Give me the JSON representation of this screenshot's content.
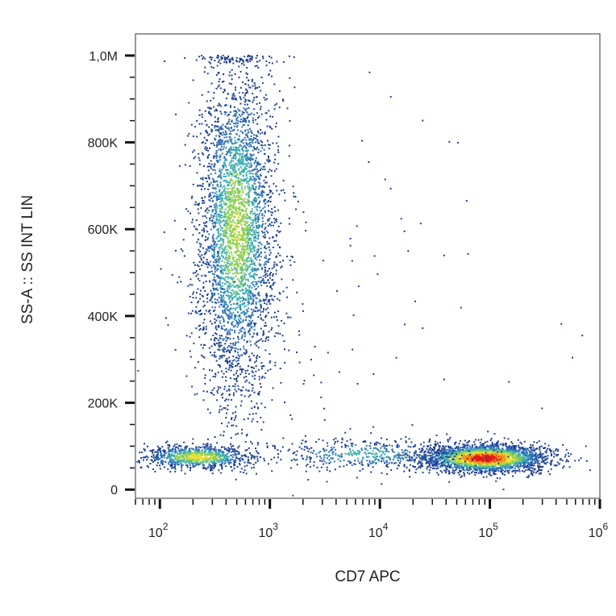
{
  "chart_data": {
    "type": "scatter",
    "subtype": "flow-cytometry density dot plot",
    "xlabel": "CD7 APC",
    "ylabel": "SS-A :: SS INT LIN",
    "x_scale": "log",
    "xlim": [
      60,
      1000000
    ],
    "ylim": [
      -20000,
      1050000
    ],
    "x_ticks": [
      {
        "value": 100,
        "base": "10",
        "exp": "2"
      },
      {
        "value": 1000,
        "base": "10",
        "exp": "3"
      },
      {
        "value": 10000,
        "base": "10",
        "exp": "4"
      },
      {
        "value": 100000,
        "base": "10",
        "exp": "5"
      },
      {
        "value": 1000000,
        "base": "10",
        "exp": "6"
      }
    ],
    "y_ticks": [
      {
        "value": 0,
        "label": "0"
      },
      {
        "value": 200000,
        "label": "200K"
      },
      {
        "value": 400000,
        "label": "400K"
      },
      {
        "value": 600000,
        "label": "600K"
      },
      {
        "value": 800000,
        "label": "800K"
      },
      {
        "value": 1000000,
        "label": "1,0M"
      }
    ],
    "density_colors": [
      "#1f3f8f",
      "#2e6fb8",
      "#3fb0b0",
      "#8fcf4f",
      "#e8e030",
      "#f09020",
      "#e01818"
    ],
    "populations": [
      {
        "x_center": 500,
        "x_spread_decades": 0.18,
        "y_center": 600000,
        "y_spread": 190000,
        "count": 3800,
        "peak_density": 0.55
      },
      {
        "x_center": 220,
        "x_spread_decades": 0.25,
        "y_center": 75000,
        "y_spread": 14000,
        "count": 900,
        "peak_density": 0.65
      },
      {
        "x_center": 90000,
        "x_spread_decades": 0.28,
        "y_center": 72000,
        "y_spread": 16000,
        "count": 2600,
        "peak_density": 1.0
      },
      {
        "x_center": 8000,
        "x_spread_decades": 0.5,
        "y_center": 80000,
        "y_spread": 18000,
        "count": 500,
        "peak_density": 0.35
      },
      {
        "x_center": 3000,
        "x_spread_decades": 1.0,
        "y_center": 350000,
        "y_spread": 280000,
        "count": 120,
        "peak_density": 0.05
      }
    ]
  }
}
